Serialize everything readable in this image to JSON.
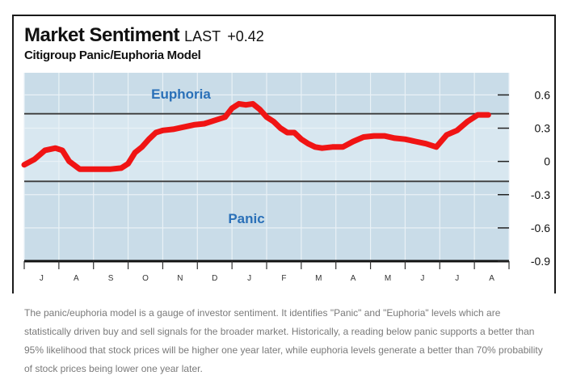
{
  "header": {
    "title": "Market Sentiment",
    "last_label": "LAST",
    "last_value": "+0.42",
    "subtitle": "Citigroup Panic/Euphoria Model"
  },
  "chart_data": {
    "type": "line",
    "title": "Market Sentiment",
    "subtitle": "Citigroup Panic/Euphoria Model",
    "xlabel": "",
    "ylabel": "",
    "ylim": [
      -0.9,
      0.8
    ],
    "yticks": [
      0.6,
      0.3,
      0,
      -0.3,
      -0.6,
      -0.9
    ],
    "ytick_labels": [
      "0.6",
      "0.3",
      "0",
      "-0.3",
      "-0.6",
      "-0.9"
    ],
    "categories": [
      "J",
      "A",
      "S",
      "O",
      "N",
      "D",
      "J",
      "F",
      "M",
      "A",
      "M",
      "J",
      "J",
      "A"
    ],
    "zones": [
      {
        "name": "Euphoria",
        "threshold": 0.43
      },
      {
        "name": "Panic",
        "threshold": -0.18
      }
    ],
    "series": [
      {
        "name": "Panic/Euphoria Model",
        "color": "#f01414",
        "x": [
          0.0,
          0.3,
          0.6,
          0.9,
          1.1,
          1.3,
          1.6,
          1.9,
          2.2,
          2.5,
          2.8,
          3.0,
          3.2,
          3.4,
          3.6,
          3.8,
          4.0,
          4.3,
          4.6,
          4.9,
          5.2,
          5.5,
          5.8,
          6.0,
          6.2,
          6.4,
          6.6,
          6.8,
          7.0,
          7.2,
          7.4,
          7.6,
          7.8,
          8.0,
          8.2,
          8.4,
          8.6,
          8.9,
          9.2,
          9.5,
          9.8,
          10.1,
          10.4,
          10.7,
          11.0,
          11.3,
          11.6,
          11.9,
          12.2,
          12.5,
          12.8,
          13.1,
          13.4
        ],
        "values": [
          -0.03,
          0.02,
          0.1,
          0.12,
          0.1,
          0.0,
          -0.07,
          -0.07,
          -0.07,
          -0.07,
          -0.06,
          -0.02,
          0.08,
          0.13,
          0.2,
          0.26,
          0.28,
          0.29,
          0.31,
          0.33,
          0.34,
          0.37,
          0.4,
          0.48,
          0.52,
          0.51,
          0.52,
          0.47,
          0.4,
          0.36,
          0.3,
          0.26,
          0.26,
          0.2,
          0.16,
          0.13,
          0.12,
          0.13,
          0.13,
          0.18,
          0.22,
          0.23,
          0.23,
          0.21,
          0.2,
          0.18,
          0.16,
          0.13,
          0.24,
          0.28,
          0.36,
          0.42,
          0.42
        ]
      }
    ]
  },
  "caption": "The panic/euphoria model is a gauge of investor sentiment. It identifies \"Panic\" and \"Euphoria\" levels which are statistically driven buy and sell signals for the broader market.  Historically, a reading below panic supports a better than 95% likelihood that stock prices will be higher one year later, while euphoria levels generate a better than 70% probability of stock prices being lower one year later.",
  "colors": {
    "zone_fill": "#c9dce8",
    "mid_fill": "#d8e7f0",
    "grid": "#e9f1f6",
    "threshold_line": "#3b3b3b",
    "zone_label": "#2a70b8",
    "line": "#f01414"
  }
}
